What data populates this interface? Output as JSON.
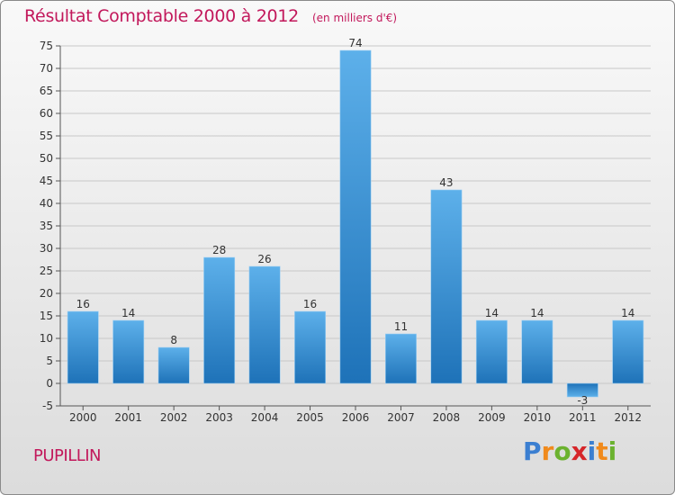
{
  "header": {
    "title": "Résultat Comptable 2000 à 2012",
    "unit": "(en milliers d'€)"
  },
  "footer": {
    "commune": "PUPILLIN",
    "logo_text": "Proxiti"
  },
  "colors": {
    "accent": "#c2185b",
    "bar_light": "#5db0ea",
    "bar_dark": "#1e72b8"
  },
  "chart_data": {
    "type": "bar",
    "title": "Résultat Comptable 2000 à 2012",
    "subtitle": "(en milliers d'€)",
    "xlabel": "",
    "ylabel": "",
    "categories": [
      "2000",
      "2001",
      "2002",
      "2003",
      "2004",
      "2005",
      "2006",
      "2007",
      "2008",
      "2009",
      "2010",
      "2011",
      "2012"
    ],
    "values": [
      16,
      14,
      8,
      28,
      26,
      16,
      74,
      11,
      43,
      14,
      14,
      -3,
      14
    ],
    "labels": [
      "16",
      "14",
      "8",
      "28",
      "26",
      "16",
      "74",
      "11",
      "43",
      "14",
      "14",
      "-3",
      "14"
    ],
    "ylim": [
      -5,
      75
    ],
    "yticks": [
      -5,
      0,
      5,
      10,
      15,
      20,
      25,
      30,
      35,
      40,
      45,
      50,
      55,
      60,
      65,
      70,
      75
    ],
    "grid": true,
    "legend": "none"
  }
}
